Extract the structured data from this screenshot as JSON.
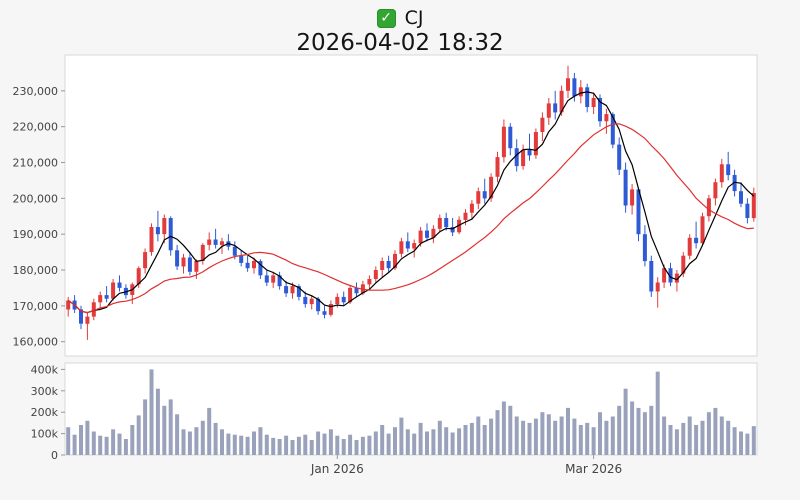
{
  "header": {
    "check_icon": "✓"
  },
  "chart_data": {
    "type": "candlestick",
    "symbol": "CJ",
    "timestamp": "2026-04-02 18:32",
    "legend": "none",
    "grid": false,
    "price_axis": {
      "min": 156000,
      "max": 240000,
      "ticks": [
        {
          "value": 160000,
          "label": "160,000"
        },
        {
          "value": 170000,
          "label": "170,000"
        },
        {
          "value": 180000,
          "label": "180,000"
        },
        {
          "value": 190000,
          "label": "190,000"
        },
        {
          "value": 200000,
          "label": "200,000"
        },
        {
          "value": 210000,
          "label": "210,000"
        },
        {
          "value": 220000,
          "label": "220,000"
        },
        {
          "value": 230000,
          "label": "230,000"
        }
      ]
    },
    "volume_axis": {
      "min": 0,
      "max": 430000,
      "ticks": [
        {
          "value": 0,
          "label": "0"
        },
        {
          "value": 100000,
          "label": "100k"
        },
        {
          "value": 200000,
          "label": "200k"
        },
        {
          "value": 300000,
          "label": "300k"
        },
        {
          "value": 400000,
          "label": "400k"
        }
      ]
    },
    "x_ticks": [
      {
        "index": 42,
        "label": "Jan 2026"
      },
      {
        "index": 82,
        "label": "Mar 2026"
      }
    ],
    "moving_averages": [
      {
        "name": "MA5",
        "period": 5,
        "color": "#000000"
      },
      {
        "name": "MA20",
        "period": 20,
        "color": "#e03030"
      }
    ],
    "colors": {
      "up": "#e23b3b",
      "down": "#2e5bd5",
      "volume": "#9aa2bb",
      "plot_border": "#d8d8d8",
      "tick_mark": "#999999",
      "tick_text": "#444444",
      "plot_bg": "#ffffff",
      "page_bg": "#f6f6f6",
      "checkbox_green": "#33a532"
    },
    "candles": [
      [
        169000,
        172500,
        167000,
        171500,
        130000
      ],
      [
        171500,
        173000,
        168000,
        169000,
        95000
      ],
      [
        169000,
        170000,
        163500,
        165000,
        140000
      ],
      [
        165000,
        168000,
        160500,
        167000,
        160000
      ],
      [
        167000,
        172000,
        166000,
        171000,
        110000
      ],
      [
        171000,
        174000,
        169500,
        173000,
        90000
      ],
      [
        173000,
        175500,
        171000,
        172000,
        85000
      ],
      [
        172000,
        177500,
        171500,
        176500,
        120000
      ],
      [
        176500,
        178500,
        174000,
        175000,
        100000
      ],
      [
        175000,
        176000,
        172000,
        173000,
        75000
      ],
      [
        173000,
        176500,
        170500,
        176000,
        140000
      ],
      [
        176000,
        181000,
        175000,
        180500,
        185000
      ],
      [
        180500,
        186000,
        179000,
        185000,
        260000
      ],
      [
        185000,
        193000,
        184000,
        192000,
        400000
      ],
      [
        192000,
        196500,
        188000,
        190000,
        310000
      ],
      [
        190000,
        195500,
        187500,
        194500,
        230000
      ],
      [
        194500,
        195000,
        184000,
        185500,
        260000
      ],
      [
        185500,
        187000,
        180000,
        181000,
        190000
      ],
      [
        181000,
        184500,
        179000,
        183500,
        120000
      ],
      [
        183500,
        185000,
        178500,
        179500,
        110000
      ],
      [
        179500,
        183000,
        177500,
        182500,
        130000
      ],
      [
        182500,
        187500,
        181500,
        187000,
        160000
      ],
      [
        187000,
        190500,
        185500,
        188500,
        220000
      ],
      [
        188500,
        191500,
        186000,
        187000,
        150000
      ],
      [
        187000,
        189000,
        184500,
        188000,
        120000
      ],
      [
        188000,
        190000,
        185500,
        186500,
        100000
      ],
      [
        186500,
        188000,
        183000,
        184000,
        95000
      ],
      [
        184000,
        185500,
        181000,
        182000,
        90000
      ],
      [
        182000,
        184000,
        179500,
        180500,
        85000
      ],
      [
        180500,
        183500,
        179000,
        182500,
        110000
      ],
      [
        182500,
        183000,
        177500,
        178500,
        130000
      ],
      [
        178500,
        180000,
        175500,
        176500,
        95000
      ],
      [
        176500,
        179500,
        175000,
        178500,
        80000
      ],
      [
        178500,
        179500,
        174500,
        175500,
        75000
      ],
      [
        175500,
        177000,
        172500,
        173500,
        90000
      ],
      [
        173500,
        176500,
        172000,
        175500,
        70000
      ],
      [
        175500,
        176000,
        171500,
        172500,
        85000
      ],
      [
        172500,
        174000,
        169500,
        170500,
        95000
      ],
      [
        170500,
        173000,
        169000,
        172000,
        70000
      ],
      [
        172000,
        172500,
        167500,
        168500,
        110000
      ],
      [
        168500,
        170000,
        166500,
        167500,
        100000
      ],
      [
        167500,
        171500,
        167000,
        170500,
        120000
      ],
      [
        170500,
        173500,
        169500,
        172500,
        90000
      ],
      [
        172500,
        174000,
        170000,
        171000,
        75000
      ],
      [
        171000,
        175500,
        170500,
        175000,
        95000
      ],
      [
        175000,
        176500,
        172500,
        173500,
        70000
      ],
      [
        173500,
        177000,
        173000,
        176000,
        85000
      ],
      [
        176000,
        178500,
        174500,
        177500,
        90000
      ],
      [
        177500,
        181000,
        176500,
        180000,
        110000
      ],
      [
        180000,
        183500,
        178000,
        182500,
        140000
      ],
      [
        182500,
        184000,
        179500,
        180500,
        100000
      ],
      [
        180500,
        185500,
        180000,
        184500,
        130000
      ],
      [
        184500,
        189000,
        183500,
        188000,
        175000
      ],
      [
        188000,
        190500,
        185000,
        186000,
        120000
      ],
      [
        186000,
        188500,
        183500,
        187500,
        100000
      ],
      [
        187500,
        192000,
        186500,
        191000,
        150000
      ],
      [
        191000,
        193000,
        188000,
        189000,
        110000
      ],
      [
        189000,
        192500,
        187500,
        191500,
        120000
      ],
      [
        191500,
        195500,
        190500,
        194500,
        160000
      ],
      [
        194500,
        196000,
        191000,
        192000,
        130000
      ],
      [
        192000,
        194500,
        189500,
        190500,
        105000
      ],
      [
        190500,
        195000,
        190000,
        194000,
        125000
      ],
      [
        194000,
        197000,
        192500,
        196000,
        140000
      ],
      [
        196000,
        199500,
        194000,
        198500,
        150000
      ],
      [
        198500,
        203000,
        197000,
        202000,
        180000
      ],
      [
        202000,
        205500,
        198500,
        200000,
        140000
      ],
      [
        200000,
        207000,
        199000,
        206000,
        170000
      ],
      [
        206000,
        213000,
        204500,
        211500,
        210000
      ],
      [
        211500,
        222000,
        210000,
        220000,
        250000
      ],
      [
        220000,
        221000,
        212000,
        214000,
        230000
      ],
      [
        214000,
        216500,
        207500,
        209000,
        180000
      ],
      [
        209000,
        215000,
        208000,
        213500,
        160000
      ],
      [
        213500,
        218000,
        210500,
        212000,
        150000
      ],
      [
        212000,
        219500,
        211000,
        218500,
        170000
      ],
      [
        218500,
        224000,
        216000,
        222500,
        200000
      ],
      [
        222500,
        228000,
        220500,
        226500,
        190000
      ],
      [
        226500,
        230000,
        222000,
        224000,
        160000
      ],
      [
        224000,
        231500,
        223000,
        230000,
        180000
      ],
      [
        230000,
        237000,
        228000,
        233500,
        220000
      ],
      [
        233500,
        235000,
        227000,
        228500,
        170000
      ],
      [
        228500,
        233000,
        226500,
        231000,
        140000
      ],
      [
        231000,
        232000,
        224000,
        225500,
        150000
      ],
      [
        225500,
        229500,
        223500,
        228000,
        130000
      ],
      [
        228000,
        229000,
        220000,
        221500,
        200000
      ],
      [
        221500,
        225000,
        218000,
        223500,
        160000
      ],
      [
        223500,
        224000,
        214000,
        215000,
        180000
      ],
      [
        215000,
        217000,
        206500,
        208000,
        230000
      ],
      [
        208000,
        210000,
        196000,
        198000,
        310000
      ],
      [
        198000,
        204000,
        195500,
        202500,
        250000
      ],
      [
        202500,
        203000,
        188000,
        190000,
        220000
      ],
      [
        190000,
        192500,
        181000,
        182500,
        200000
      ],
      [
        182500,
        184000,
        172500,
        174000,
        230000
      ],
      [
        174000,
        178000,
        169500,
        176500,
        390000
      ],
      [
        176500,
        181500,
        175000,
        180500,
        180000
      ],
      [
        180500,
        182000,
        175500,
        176500,
        140000
      ],
      [
        176500,
        180000,
        174000,
        179000,
        120000
      ],
      [
        179000,
        185000,
        178000,
        184000,
        150000
      ],
      [
        184000,
        190000,
        183000,
        189000,
        180000
      ],
      [
        189000,
        193500,
        186000,
        187500,
        140000
      ],
      [
        187500,
        196000,
        187000,
        195000,
        160000
      ],
      [
        195000,
        201000,
        193500,
        200000,
        200000
      ],
      [
        200000,
        205500,
        198000,
        204500,
        220000
      ],
      [
        204500,
        211000,
        203000,
        209500,
        180000
      ],
      [
        209500,
        213000,
        205000,
        206500,
        160000
      ],
      [
        206500,
        208000,
        200500,
        202000,
        130000
      ],
      [
        202000,
        204500,
        197500,
        198500,
        110000
      ],
      [
        198500,
        200000,
        193000,
        194500,
        100000
      ],
      [
        194500,
        203000,
        193500,
        201500,
        135000
      ]
    ]
  }
}
